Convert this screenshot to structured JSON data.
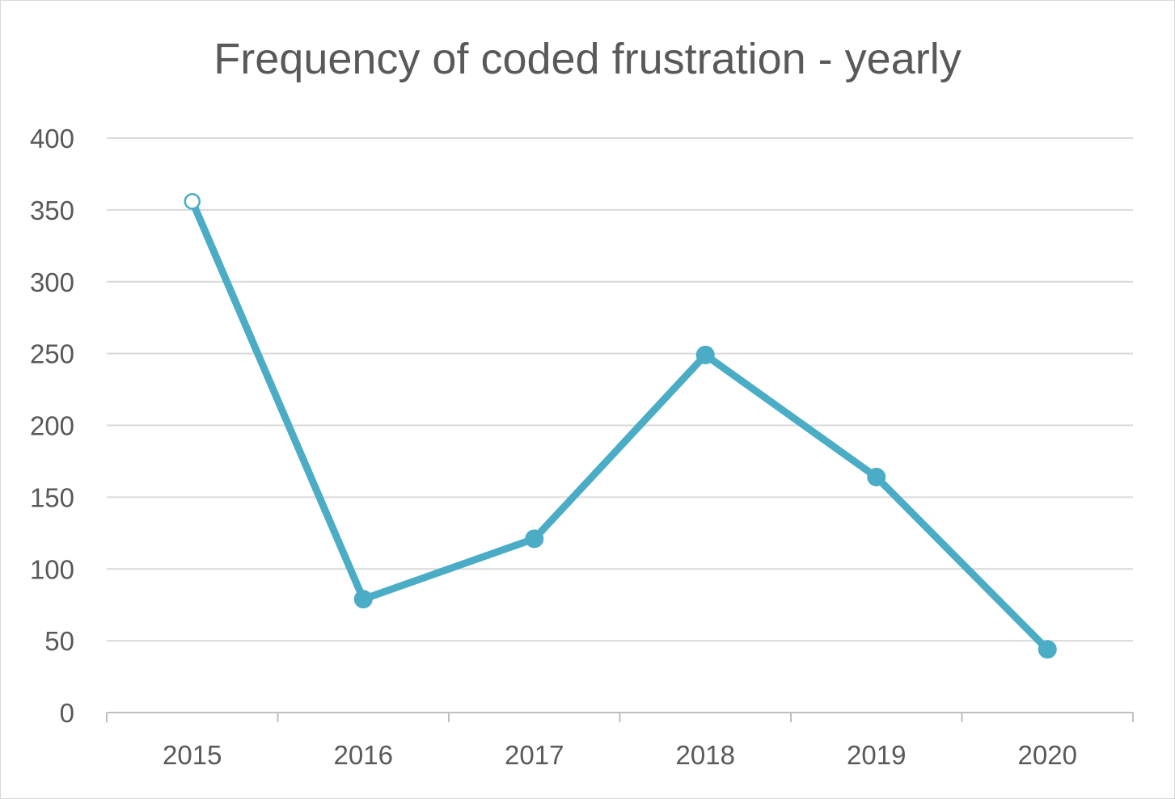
{
  "chart_data": {
    "type": "line",
    "title": "Frequency of coded frustration - yearly",
    "xlabel": "",
    "ylabel": "",
    "categories": [
      "2015",
      "2016",
      "2017",
      "2018",
      "2019",
      "2020"
    ],
    "series": [
      {
        "values": [
          356,
          79,
          121,
          249,
          164,
          44
        ]
      }
    ],
    "ylim": [
      0,
      400
    ],
    "yticks": [
      "0",
      "50",
      "100",
      "150",
      "200",
      "250",
      "300",
      "350",
      "400"
    ],
    "grid": true,
    "legend": "none",
    "first_point_hollow": true,
    "colors": {
      "line": "#4bacc6",
      "grid": "#d9d9d9",
      "axis": "#bfbfbf",
      "text": "#595959"
    }
  }
}
